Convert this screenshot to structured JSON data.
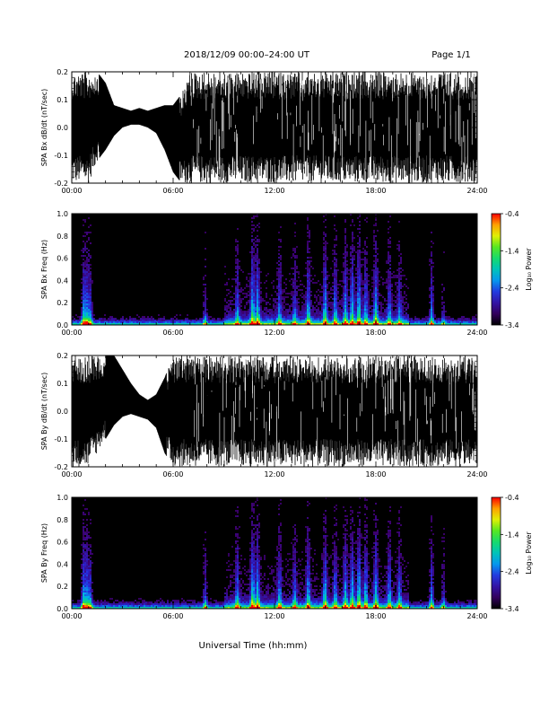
{
  "header": {
    "title": "2018/12/09  00:00–24:00 UT",
    "page": "Page 1/1"
  },
  "xlabel_bottom": "Universal Time (hh:mm)",
  "chart_data": [
    {
      "type": "line",
      "ylabel": "SPA Bx dB/dt (nT/sec)",
      "xlim_hours": [
        0,
        24
      ],
      "ylim": [
        -0.2,
        0.2
      ],
      "x_ticks": [
        "00:00",
        "06:00",
        "12:00",
        "18:00",
        "24:00"
      ],
      "y_ticks": [
        "-0.2",
        "-0.1",
        "0.0",
        "0.1",
        "0.2"
      ],
      "envelope_hours": [
        0,
        0.5,
        1,
        1.5,
        2,
        2.5,
        3,
        3.5,
        4,
        4.5,
        5,
        5.5,
        6,
        6.5,
        7,
        7.5,
        8,
        9,
        10,
        11,
        12,
        13,
        14,
        15,
        16,
        17,
        18,
        19,
        20,
        21,
        22,
        23,
        24
      ],
      "envelope_max": [
        0.2,
        0.2,
        0.2,
        0.2,
        0.16,
        0.08,
        0.07,
        0.06,
        0.07,
        0.06,
        0.07,
        0.08,
        0.08,
        0.12,
        0.2,
        0.2,
        0.2,
        0.2,
        0.2,
        0.2,
        0.2,
        0.2,
        0.2,
        0.2,
        0.2,
        0.2,
        0.2,
        0.2,
        0.2,
        0.2,
        0.2,
        0.2,
        0.2
      ],
      "envelope_min": [
        -0.2,
        -0.2,
        -0.2,
        -0.12,
        -0.08,
        -0.03,
        0.0,
        0.01,
        0.01,
        0.0,
        -0.02,
        -0.08,
        -0.16,
        -0.2,
        -0.2,
        -0.2,
        -0.2,
        -0.2,
        -0.2,
        -0.2,
        -0.2,
        -0.2,
        -0.2,
        -0.2,
        -0.2,
        -0.2,
        -0.2,
        -0.2,
        -0.2,
        -0.2,
        -0.2,
        -0.2,
        -0.2
      ]
    },
    {
      "type": "heatmap",
      "ylabel": "SPA Bx Freq (Hz)",
      "xlim_hours": [
        0,
        24
      ],
      "ylim": [
        0,
        1.0
      ],
      "x_ticks": [
        "00:00",
        "06:00",
        "12:00",
        "18:00",
        "24:00"
      ],
      "y_ticks": [
        "0.0",
        "0.2",
        "0.4",
        "0.6",
        "0.8",
        "1.0"
      ],
      "colorbar": {
        "label": "Log₁₀ Power",
        "ticks": [
          "-0.4",
          "-1.4",
          "-2.4",
          "-3.4"
        ],
        "range": [
          -3.4,
          -0.4
        ]
      },
      "activity_hours": [
        0.7,
        0.9,
        1.1,
        7.9,
        9.8,
        10.7,
        11.0,
        12.3,
        13.2,
        14.0,
        15.0,
        15.6,
        16.2,
        16.6,
        17.0,
        17.4,
        18.0,
        18.8,
        19.4,
        21.3,
        22.0
      ],
      "activity_strength": [
        0.9,
        0.8,
        0.7,
        0.5,
        0.6,
        1.0,
        0.9,
        0.6,
        0.5,
        0.8,
        0.9,
        0.7,
        0.8,
        0.9,
        1.0,
        0.7,
        0.9,
        0.6,
        0.5,
        0.8,
        0.4
      ]
    },
    {
      "type": "line",
      "ylabel": "SPA By dB/dt (nT/sec)",
      "xlim_hours": [
        0,
        24
      ],
      "ylim": [
        -0.2,
        0.2
      ],
      "x_ticks": [
        "00:00",
        "06:00",
        "12:00",
        "18:00",
        "24:00"
      ],
      "y_ticks": [
        "-0.2",
        "-0.1",
        "0.0",
        "0.1",
        "0.2"
      ],
      "envelope_hours": [
        0,
        0.5,
        1,
        1.5,
        2,
        2.5,
        3,
        3.5,
        4,
        4.5,
        5,
        5.5,
        6,
        6.5,
        7,
        7.5,
        8,
        9,
        10,
        11,
        12,
        13,
        14,
        15,
        16,
        17,
        18,
        19,
        20,
        21,
        22,
        23,
        24
      ],
      "envelope_max": [
        0.2,
        0.2,
        0.2,
        0.2,
        0.2,
        0.2,
        0.15,
        0.1,
        0.06,
        0.04,
        0.06,
        0.12,
        0.2,
        0.2,
        0.2,
        0.2,
        0.2,
        0.2,
        0.2,
        0.2,
        0.2,
        0.2,
        0.2,
        0.2,
        0.2,
        0.2,
        0.2,
        0.2,
        0.2,
        0.2,
        0.2,
        0.2,
        0.2
      ],
      "envelope_min": [
        -0.2,
        -0.2,
        -0.2,
        -0.15,
        -0.1,
        -0.05,
        -0.02,
        -0.01,
        -0.02,
        -0.03,
        -0.06,
        -0.15,
        -0.2,
        -0.2,
        -0.2,
        -0.2,
        -0.2,
        -0.2,
        -0.2,
        -0.2,
        -0.2,
        -0.2,
        -0.2,
        -0.2,
        -0.2,
        -0.2,
        -0.2,
        -0.2,
        -0.2,
        -0.2,
        -0.2,
        -0.2,
        -0.2
      ]
    },
    {
      "type": "heatmap",
      "ylabel": "SPA By Freq (Hz)",
      "xlim_hours": [
        0,
        24
      ],
      "ylim": [
        0,
        1.0
      ],
      "x_ticks": [
        "00:00",
        "06:00",
        "12:00",
        "18:00",
        "24:00"
      ],
      "y_ticks": [
        "0.0",
        "0.2",
        "0.4",
        "0.6",
        "0.8",
        "1.0"
      ],
      "colorbar": {
        "label": "Log₁₀ Power",
        "ticks": [
          "-0.4",
          "-1.4",
          "-2.4",
          "-3.4"
        ],
        "range": [
          -3.4,
          -0.4
        ]
      },
      "activity_hours": [
        0.7,
        0.9,
        1.1,
        7.9,
        9.8,
        10.7,
        11.0,
        12.3,
        13.2,
        14.0,
        15.0,
        15.6,
        16.2,
        16.6,
        17.0,
        17.4,
        18.0,
        18.8,
        19.4,
        21.3,
        22.0
      ],
      "activity_strength": [
        0.9,
        0.8,
        0.7,
        0.6,
        0.7,
        1.0,
        0.9,
        0.7,
        0.6,
        0.8,
        0.9,
        0.7,
        0.8,
        0.9,
        1.0,
        0.8,
        0.9,
        0.7,
        0.6,
        0.8,
        0.5
      ]
    }
  ]
}
